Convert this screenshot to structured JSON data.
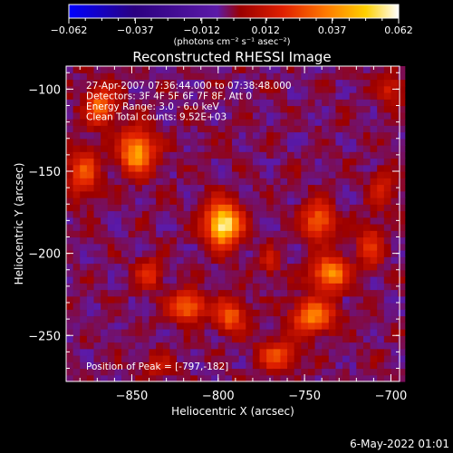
{
  "chart_data": {
    "type": "heatmap",
    "title": "Reconstructed RHESSI Image",
    "xlabel": "Heliocentric X (arcsec)",
    "ylabel": "Heliocentric Y (arcsec)",
    "xlim": [
      -888,
      -695
    ],
    "ylim": [
      -278,
      -86
    ],
    "x_ticks": [
      -850,
      -800,
      -750,
      -700
    ],
    "y_ticks": [
      -100,
      -150,
      -200,
      -250
    ],
    "colorbar": {
      "range": [
        -0.062,
        0.062
      ],
      "tick_values": [
        -0.062,
        -0.037,
        -0.012,
        0.012,
        0.037,
        0.062
      ],
      "tick_labels": [
        "-0.062",
        "-0.037",
        "-0.012",
        "0.012",
        "0.037",
        "0.062"
      ],
      "unit_label": "(photons cm⁻² s⁻¹ asec⁻²)",
      "colors": [
        "#0000ff",
        "#2b0080",
        "#5c1aa8",
        "#9b0000",
        "#e02000",
        "#ff7a00",
        "#ffd000",
        "#ffffff"
      ]
    },
    "annotations": [
      "27-Apr-2007 07:36:44.000 to 07:38:48.000",
      "Detectors: 3F 4F 5F 6F 7F 8F, Att 0",
      "Energy Range: 3.0 - 6.0 keV",
      "Clean     Total counts: 9.52E+03"
    ],
    "peak_label": "Position of Peak = [-797,-182]",
    "peak": {
      "x": -797,
      "y": -182,
      "value": 0.062
    },
    "sources": [
      {
        "x": -797,
        "y": -182,
        "sx": 7,
        "sy": 9,
        "amp": 0.062
      },
      {
        "x": -847,
        "y": -138,
        "sx": 7,
        "sy": 9,
        "amp": 0.046
      },
      {
        "x": -868,
        "y": -110,
        "sx": 6,
        "sy": 8,
        "amp": 0.034
      },
      {
        "x": -878,
        "y": -150,
        "sx": 6,
        "sy": 10,
        "amp": 0.028
      },
      {
        "x": -818,
        "y": -232,
        "sx": 7,
        "sy": 6,
        "amp": 0.036
      },
      {
        "x": -793,
        "y": -238,
        "sx": 6,
        "sy": 7,
        "amp": 0.032
      },
      {
        "x": -840,
        "y": -212,
        "sx": 5,
        "sy": 6,
        "amp": 0.024
      },
      {
        "x": -742,
        "y": -180,
        "sx": 6,
        "sy": 8,
        "amp": 0.034
      },
      {
        "x": -735,
        "y": -212,
        "sx": 7,
        "sy": 7,
        "amp": 0.042
      },
      {
        "x": -745,
        "y": -238,
        "sx": 8,
        "sy": 7,
        "amp": 0.04
      },
      {
        "x": -765,
        "y": -262,
        "sx": 8,
        "sy": 6,
        "amp": 0.028
      },
      {
        "x": -712,
        "y": -195,
        "sx": 5,
        "sy": 9,
        "amp": 0.022
      },
      {
        "x": -705,
        "y": -160,
        "sx": 5,
        "sy": 8,
        "amp": 0.016
      },
      {
        "x": -700,
        "y": -100,
        "sx": 5,
        "sy": 6,
        "amp": 0.018
      },
      {
        "x": -770,
        "y": -205,
        "sx": 4,
        "sy": 5,
        "amp": 0.018
      },
      {
        "x": -835,
        "y": -268,
        "sx": 6,
        "sy": 5,
        "amp": 0.014
      }
    ]
  },
  "footer_date": "6-May-2022 01:01"
}
